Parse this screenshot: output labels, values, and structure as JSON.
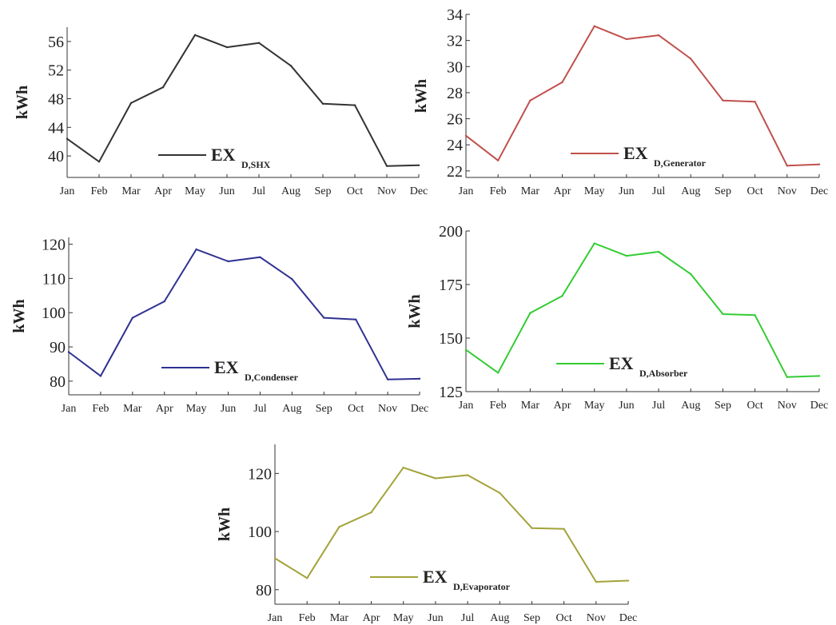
{
  "chart_data": [
    {
      "type": "line",
      "ylabel": "kWh",
      "xlabel": "",
      "categories": [
        "Jan",
        "Feb",
        "Mar",
        "Apr",
        "May",
        "Jun",
        "Jul",
        "Aug",
        "Sep",
        "Oct",
        "Nov",
        "Dec"
      ],
      "ylim": [
        37,
        58
      ],
      "yticks": [
        40,
        44,
        48,
        52,
        56
      ],
      "color": "#333333",
      "legend": {
        "main": "EX",
        "sub": "D,SHX",
        "placement": "bottom-center"
      },
      "series": [
        {
          "name": "EXD,SHX",
          "values": [
            42.4,
            39.2,
            47.4,
            49.6,
            56.9,
            55.2,
            55.8,
            52.6,
            47.3,
            47.1,
            38.6,
            38.7
          ]
        }
      ]
    },
    {
      "type": "line",
      "ylabel": "kWh",
      "xlabel": "",
      "categories": [
        "Jan",
        "Feb",
        "Mar",
        "Apr",
        "May",
        "Jun",
        "Jul",
        "Aug",
        "Sep",
        "Oct",
        "Nov",
        "Dec"
      ],
      "ylim": [
        21.5,
        34
      ],
      "yticks": [
        22,
        24,
        26,
        28,
        30,
        32,
        34
      ],
      "color": "#c0504d",
      "legend": {
        "main": "EX",
        "sub": "D,Generator",
        "placement": "bottom-center"
      },
      "series": [
        {
          "name": "EXD,Generator",
          "values": [
            24.7,
            22.8,
            27.4,
            28.8,
            33.1,
            32.1,
            32.4,
            30.6,
            27.4,
            27.3,
            22.4,
            22.5
          ]
        }
      ]
    },
    {
      "type": "line",
      "ylabel": "kWh",
      "xlabel": "",
      "categories": [
        "Jan",
        "Feb",
        "Mar",
        "Apr",
        "May",
        "Jun",
        "Jul",
        "Aug",
        "Sep",
        "Oct",
        "Nov",
        "Dec"
      ],
      "ylim": [
        76,
        122
      ],
      "yticks": [
        80,
        90,
        100,
        110,
        120
      ],
      "color": "#2e3192",
      "legend": {
        "main": "EX",
        "sub": "D,Condenser",
        "placement": "bottom-center"
      },
      "series": [
        {
          "name": "EXD,Condenser",
          "values": [
            88.5,
            81.5,
            98.5,
            103.3,
            118.5,
            115.0,
            116.2,
            109.8,
            98.5,
            98.0,
            80.5,
            80.7
          ]
        }
      ]
    },
    {
      "type": "line",
      "ylabel": "kWh",
      "xlabel": "",
      "categories": [
        "Jan",
        "Feb",
        "Mar",
        "Apr",
        "May",
        "Jun",
        "Jul",
        "Aug",
        "Sep",
        "Oct",
        "Nov",
        "Dec"
      ],
      "ylim": [
        125,
        200
      ],
      "yticks": [
        125,
        150,
        175,
        200
      ],
      "color": "#33cc33",
      "legend": {
        "main": "EX",
        "sub": "D,Absorber",
        "placement": "bottom-center"
      },
      "series": [
        {
          "name": "EXD,Absorber",
          "values": [
            144.5,
            133.8,
            161.7,
            169.7,
            194.2,
            188.4,
            190.3,
            179.9,
            161.2,
            160.7,
            131.8,
            132.3
          ]
        }
      ]
    },
    {
      "type": "line",
      "ylabel": "kWh",
      "xlabel": "",
      "categories": [
        "Jan",
        "Feb",
        "Mar",
        "Apr",
        "May",
        "Jun",
        "Jul",
        "Aug",
        "Sep",
        "Oct",
        "Nov",
        "Dec"
      ],
      "ylim": [
        75,
        130
      ],
      "yticks": [
        80,
        100,
        120
      ],
      "color": "#a3a33a",
      "legend": {
        "main": "EX",
        "sub": "D,Evaporator",
        "placement": "bottom-center"
      },
      "series": [
        {
          "name": "EXD,Evaporator",
          "values": [
            90.8,
            84.0,
            101.6,
            106.6,
            122.0,
            118.3,
            119.4,
            113.3,
            101.2,
            100.9,
            82.7,
            83.1
          ]
        }
      ]
    }
  ]
}
